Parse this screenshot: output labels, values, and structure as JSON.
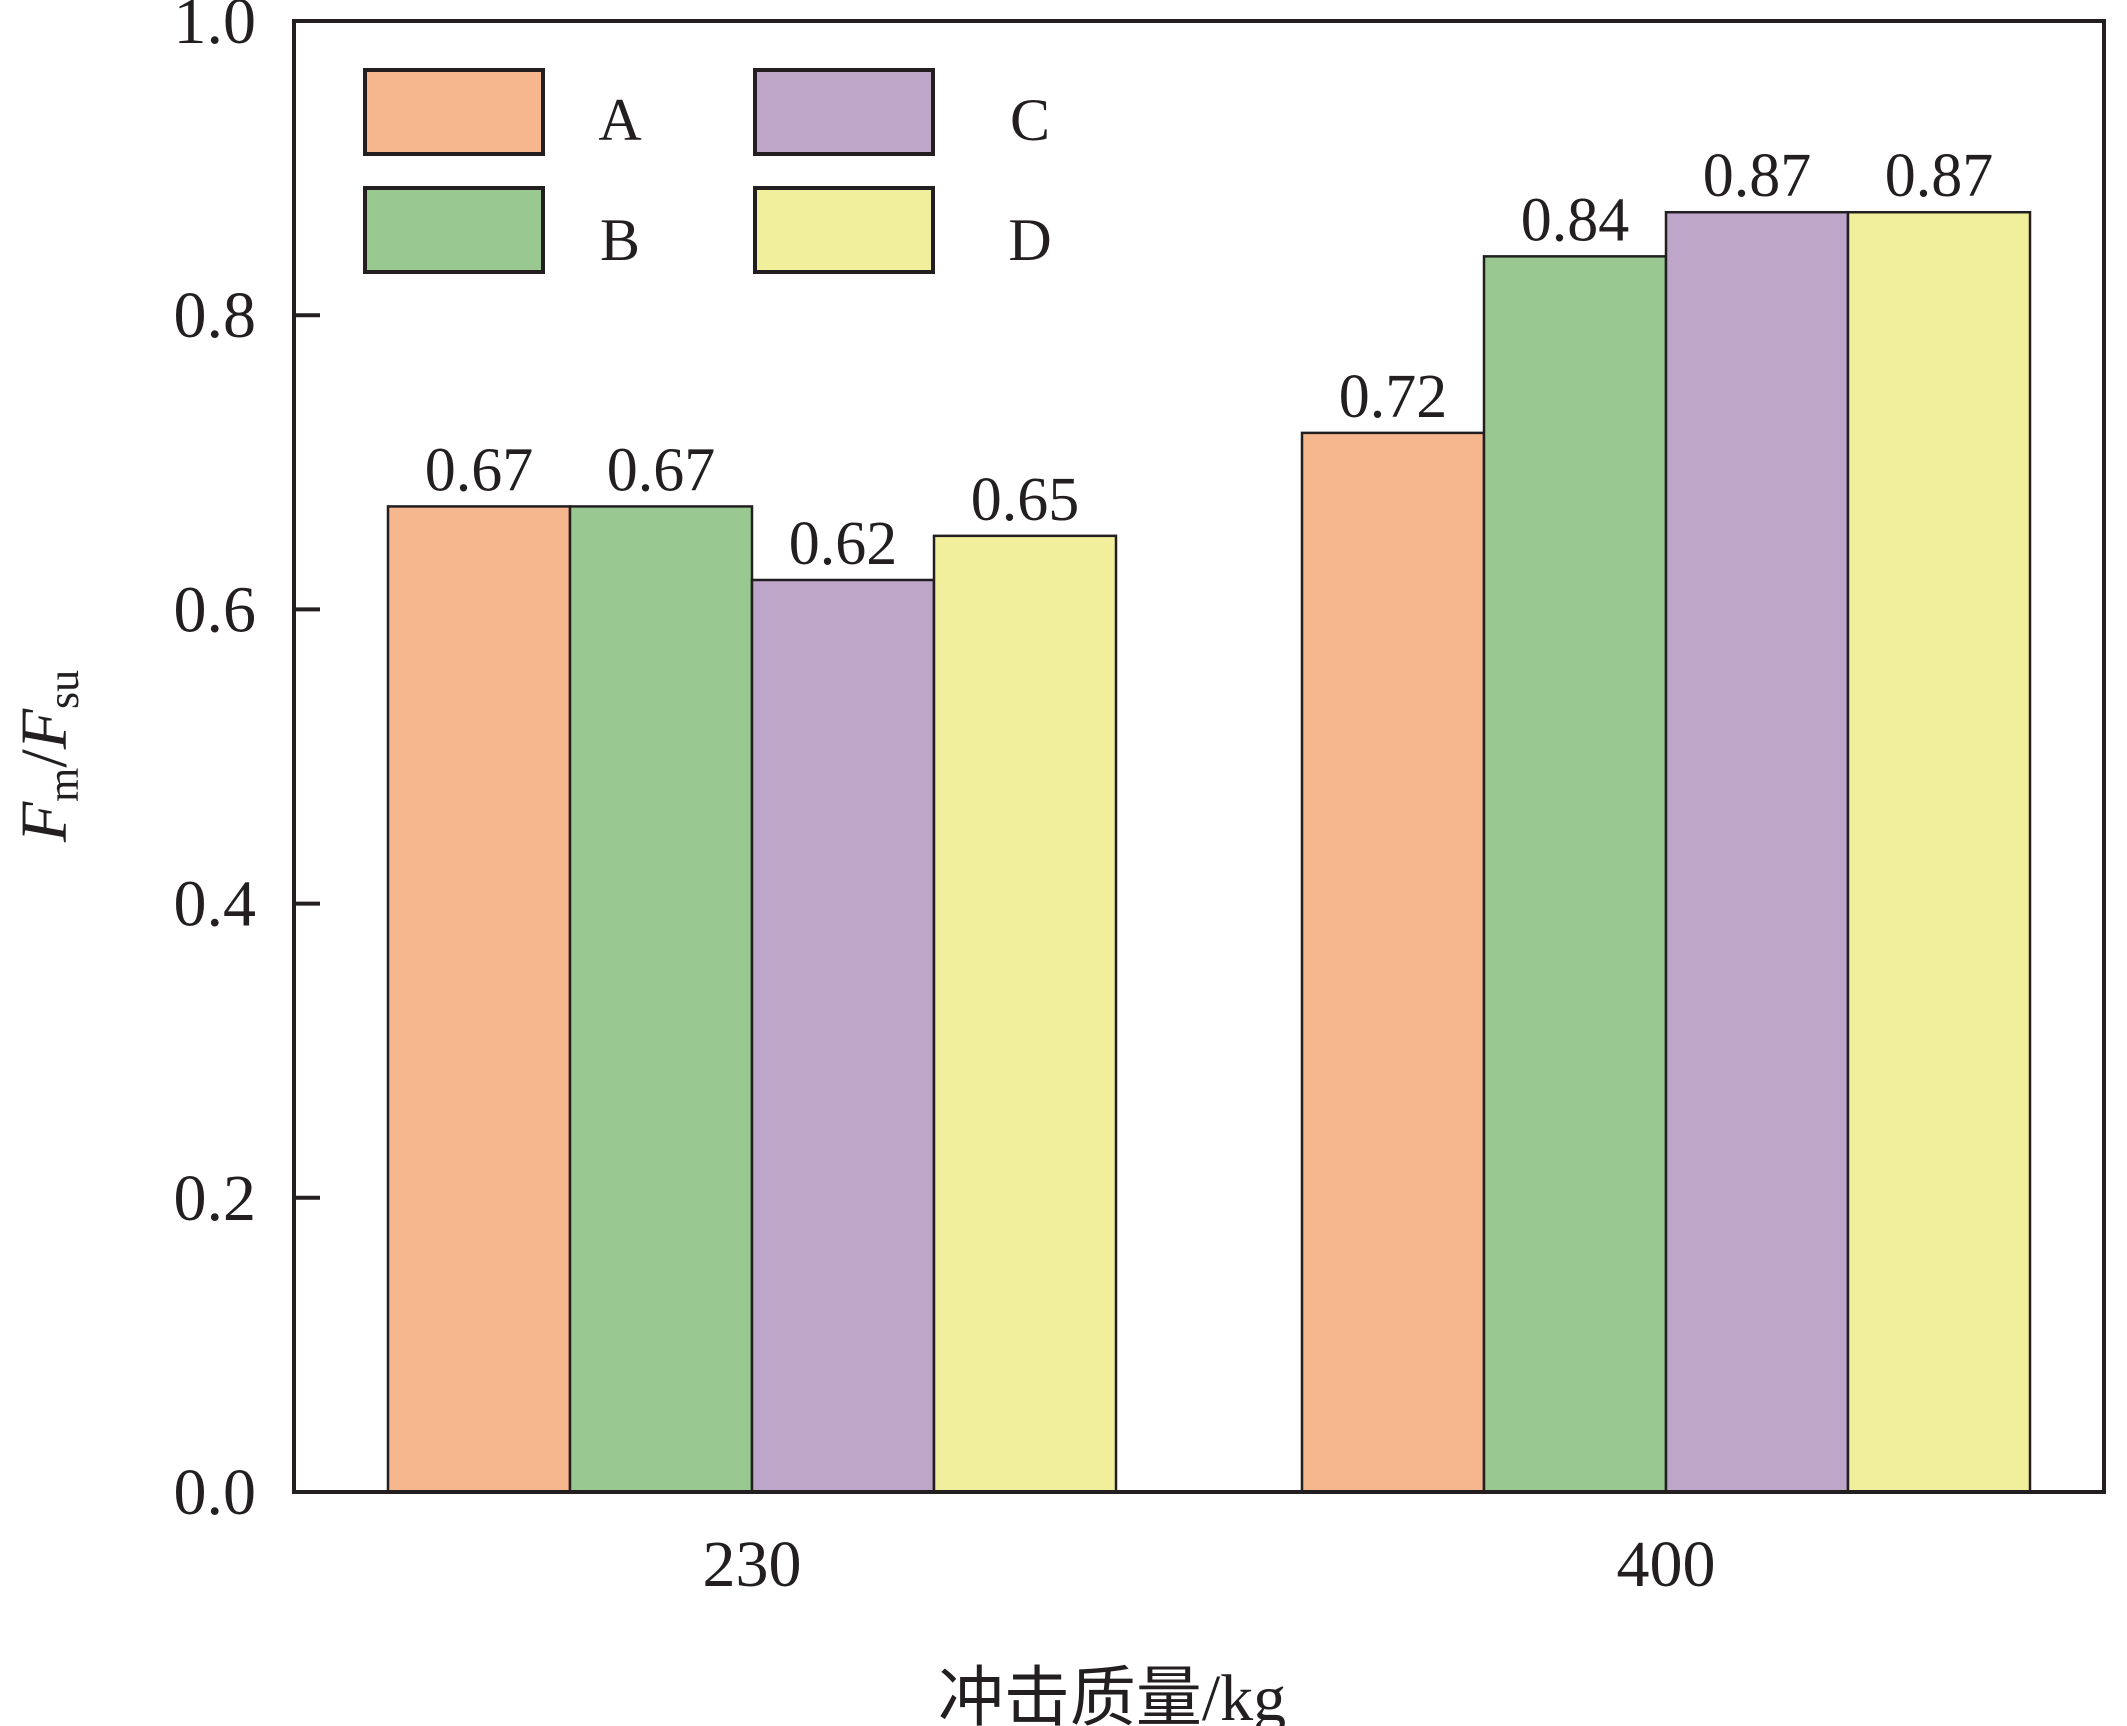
{
  "chart_data": {
    "type": "bar",
    "categories": [
      "230",
      "400"
    ],
    "series": [
      {
        "name": "A",
        "color": "#f6b68e",
        "values": [
          0.67,
          0.72
        ],
        "labels": [
          "0.67",
          "0.72"
        ]
      },
      {
        "name": "B",
        "color": "#99c991",
        "values": [
          0.67,
          0.84
        ],
        "labels": [
          "0.67",
          "0.84"
        ]
      },
      {
        "name": "C",
        "color": "#bda6c8",
        "values": [
          0.62,
          0.87
        ],
        "labels": [
          "0.62",
          "0.87"
        ]
      },
      {
        "name": "D",
        "color": "#f2ef9c",
        "values": [
          0.65,
          0.87
        ],
        "labels": [
          "0.65",
          "0.87"
        ]
      }
    ],
    "xlabel": "冲击质量/kg",
    "ylabel": {
      "main1": "F",
      "sub1": "m",
      "sep": "/",
      "main2": "F",
      "sub2": "su"
    },
    "ylim": [
      0,
      1.0
    ],
    "yticks": [
      "0.0",
      "0.2",
      "0.4",
      "0.6",
      "0.8",
      "1.0"
    ],
    "grid": false,
    "legend_position": "top-left"
  }
}
